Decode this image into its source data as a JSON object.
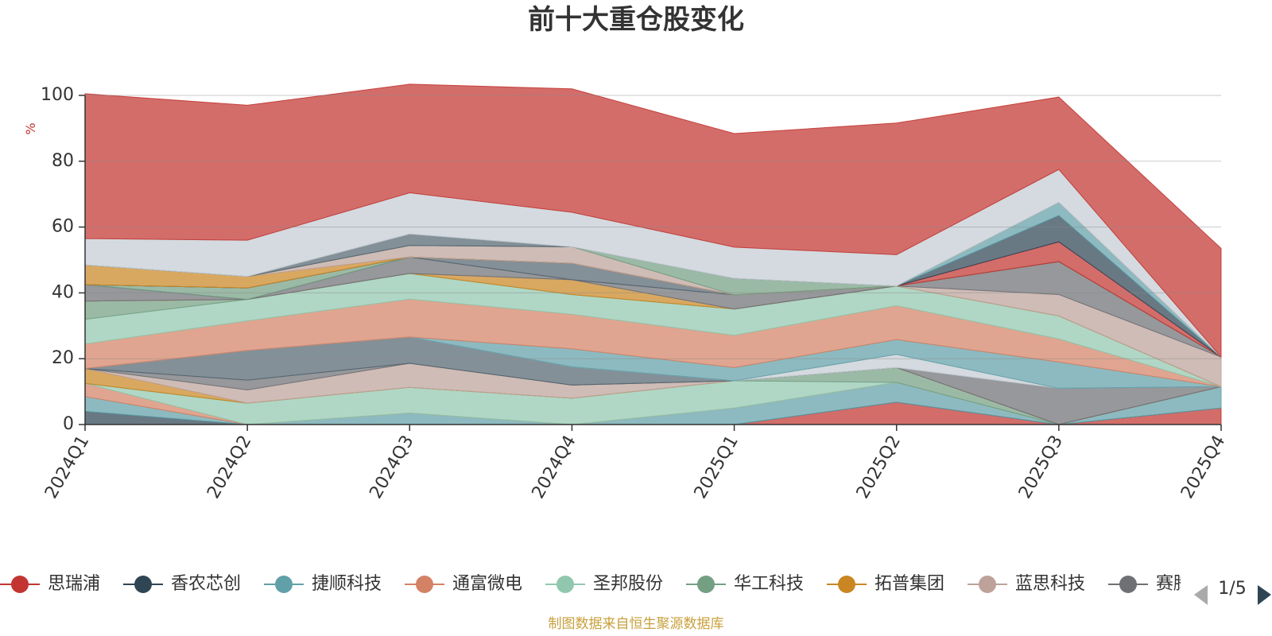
{
  "chart_data": {
    "type": "area",
    "title": "前十大重仓股变化",
    "xlabel": "",
    "ylabel": "%",
    "ylim": [
      0,
      100
    ],
    "yticks": [
      "0",
      "20",
      "40",
      "60",
      "80",
      "100"
    ],
    "categories": [
      "2024Q1",
      "2024Q2",
      "2024Q3",
      "2024Q4",
      "2025Q1",
      "2025Q2",
      "2025Q3",
      "2025Q4"
    ],
    "stacked": true,
    "series": [
      {
        "name": "思瑞浦",
        "color": "#c23531",
        "values": [
          0,
          0,
          0,
          0,
          0,
          6.8,
          0,
          5
        ]
      },
      {
        "name": "香农芯创",
        "color": "#2f4554",
        "values": [
          4,
          0,
          0,
          0,
          0,
          0,
          0,
          0
        ]
      },
      {
        "name": "捷顺科技",
        "color": "#61a0a8",
        "values": [
          4.5,
          0,
          3.5,
          0,
          5,
          6,
          0,
          6.5
        ]
      },
      {
        "name": "通富微电",
        "color": "#d48265",
        "values": [
          4,
          0,
          0,
          0,
          0,
          0,
          0,
          0
        ]
      },
      {
        "name": "圣邦股份",
        "color": "#91c7ae",
        "values": [
          0,
          6.5,
          7.8,
          8,
          8.3,
          0,
          0,
          0
        ]
      },
      {
        "name": "华工科技",
        "color": "#749f83",
        "values": [
          0,
          0,
          0,
          0,
          0,
          4.5,
          0,
          0
        ]
      },
      {
        "name": "拓普集团",
        "color": "#ca8622",
        "values": [
          4.5,
          0,
          0,
          0,
          0,
          0,
          0,
          0
        ]
      },
      {
        "name": "蓝思科技",
        "color": "#bda29a",
        "values": [
          0,
          4,
          7.3,
          4,
          0,
          0,
          0,
          0
        ]
      },
      {
        "name": "赛腾股份",
        "color": "#6e7074",
        "values": [
          0,
          3,
          0,
          0,
          0,
          0,
          11,
          0
        ]
      }
    ],
    "extra_layers": [
      {
        "color": "#546570",
        "values": [
          0,
          9,
          8,
          5.5,
          0,
          0,
          0,
          0
        ]
      },
      {
        "color": "#c4ccd3",
        "values": [
          0,
          0,
          0,
          0,
          0,
          4,
          0,
          0
        ]
      },
      {
        "color": "#61a0a8",
        "values": [
          0,
          0,
          0,
          5.5,
          4,
          4.5,
          8,
          0
        ]
      },
      {
        "color": "#d48265",
        "values": [
          7.5,
          9,
          11.5,
          10.5,
          9.8,
          10.3,
          7,
          0
        ]
      },
      {
        "color": "#91c7ae",
        "values": [
          7.5,
          6.5,
          7.8,
          6,
          8,
          6,
          7,
          0
        ]
      },
      {
        "color": "#749f83",
        "values": [
          5.5,
          0,
          0,
          0,
          0,
          0,
          0,
          0
        ]
      },
      {
        "color": "#ca8622",
        "values": [
          0,
          0,
          0,
          4.5,
          0,
          0,
          0,
          0
        ]
      },
      {
        "color": "#bda29a",
        "values": [
          0,
          0,
          0,
          0,
          0,
          0,
          6.5,
          9
        ]
      },
      {
        "color": "#6e7074",
        "values": [
          5,
          0,
          5,
          0,
          4.3,
          0,
          10,
          0
        ]
      },
      {
        "color": "#546570",
        "values": [
          0,
          0,
          0,
          5,
          0,
          0,
          0,
          0
        ]
      },
      {
        "color": "#749f83",
        "values": [
          0,
          3.5,
          0,
          0,
          0,
          0,
          0,
          0
        ]
      },
      {
        "color": "#c23531",
        "values": [
          0,
          0,
          0,
          0,
          0,
          0,
          6,
          0
        ]
      },
      {
        "color": "#2f4554",
        "values": [
          0,
          0,
          0,
          0,
          0,
          0,
          8,
          0
        ]
      },
      {
        "color": "#61a0a8",
        "values": [
          0,
          0,
          0,
          0,
          0,
          0,
          4,
          0
        ]
      },
      {
        "color": "#ca8622",
        "values": [
          6,
          3.5,
          0,
          0,
          0,
          0,
          0,
          0
        ]
      },
      {
        "color": "#bda29a",
        "values": [
          0,
          0,
          3.5,
          5,
          0,
          0,
          0,
          0
        ]
      },
      {
        "color": "#749f83",
        "values": [
          0,
          0,
          0,
          0,
          5,
          0,
          0,
          0
        ]
      },
      {
        "color": "#546570",
        "values": [
          0,
          0,
          3.5,
          0,
          0,
          0,
          0,
          0
        ]
      },
      {
        "color": "#c4ccd3",
        "values": [
          8,
          11,
          12.5,
          10.5,
          9.5,
          9.5,
          10,
          0
        ]
      },
      {
        "color": "#c23531",
        "values": [
          44,
          41,
          33,
          37.5,
          34.5,
          40,
          22,
          33
        ]
      }
    ],
    "legend": {
      "items": [
        "思瑞浦",
        "香农芯创",
        "捷顺科技",
        "通富微电",
        "圣邦股份",
        "华工科技",
        "拓普集团",
        "蓝思科技",
        "赛腾股份"
      ],
      "page": "1/5"
    },
    "source": "制图数据来自恒生聚源数据库",
    "source_color": "#c8a03c"
  }
}
